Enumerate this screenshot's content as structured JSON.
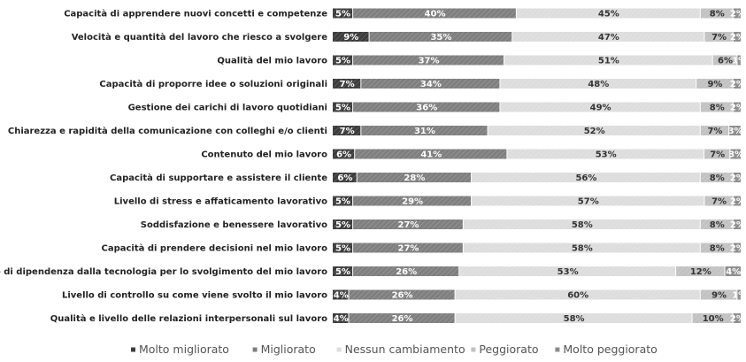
{
  "chart_data": {
    "type": "bar",
    "orientation": "horizontal",
    "stacked": true,
    "normalized": true,
    "legend_position": "bottom",
    "grid": false,
    "categories": [
      "Capacità di apprendere nuovi concetti e competenze",
      "Velocità e quantità del lavoro che riesco a svolgere",
      "Qualità del mio lavoro",
      "Capacità di proporre idee o soluzioni originali",
      "Gestione dei carichi di lavoro quotidiani",
      "Chiarezza e rapidità della comunicazione con colleghi e/o clienti",
      "Contenuto del mio lavoro",
      "Capacità di supportare e assistere il cliente",
      "Livello di stress e affaticamento lavorativo",
      "Soddisfazione e benessere lavorativo",
      "Capacità di prendere decisioni nel mio lavoro",
      "Il grado di dipendenza dalla tecnologia per lo svolgimento del mio lavoro",
      "Livello di controllo su come viene svolto il mio lavoro",
      "Qualità e livello delle relazioni interpersonali sul lavoro"
    ],
    "series": [
      {
        "name": "Molto migliorato",
        "color": "#3c3c3c",
        "text_color": "#ffffff",
        "values": [
          5,
          9,
          5,
          7,
          5,
          7,
          6,
          6,
          5,
          5,
          5,
          5,
          4,
          4
        ]
      },
      {
        "name": "Migliorato",
        "color": "#7f7f7f",
        "text_color": "#ffffff",
        "values": [
          40,
          35,
          37,
          34,
          36,
          31,
          41,
          28,
          29,
          27,
          27,
          26,
          26,
          26
        ]
      },
      {
        "name": "Nessun cambiamento",
        "color": "#dddddd",
        "text_color": "#333333",
        "values": [
          45,
          47,
          51,
          48,
          49,
          52,
          53,
          56,
          57,
          58,
          58,
          53,
          60,
          58
        ]
      },
      {
        "name": "Peggiorato",
        "color": "#c2c2c2",
        "text_color": "#333333",
        "values": [
          8,
          7,
          6,
          9,
          8,
          7,
          7,
          8,
          7,
          8,
          8,
          12,
          9,
          10
        ]
      },
      {
        "name": "Molto peggiorato",
        "color": "#8c8c8c",
        "text_color": "#ffffff",
        "values": [
          2,
          2,
          1,
          2,
          2,
          3,
          3,
          2,
          2,
          2,
          2,
          4,
          1,
          2
        ]
      }
    ],
    "value_suffix": "%"
  }
}
